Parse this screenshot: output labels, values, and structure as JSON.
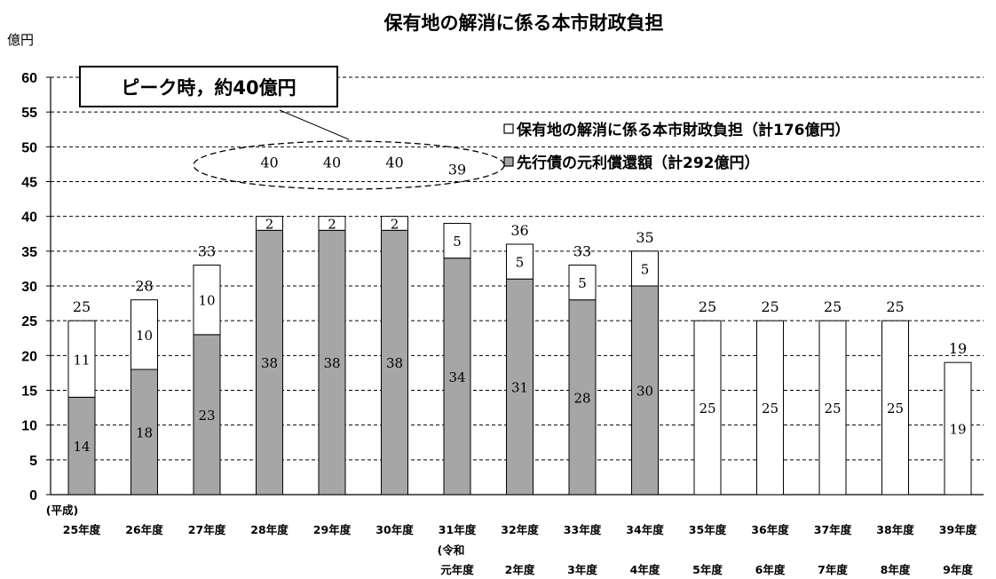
{
  "chart_data": {
    "type": "bar",
    "stacked": true,
    "title": "保有地の解消に係る本市財政負担",
    "ylabel": "億円",
    "ylim": [
      0,
      60
    ],
    "yticks": [
      0,
      5,
      10,
      15,
      20,
      25,
      30,
      35,
      40,
      45,
      50,
      55,
      60
    ],
    "grid": true,
    "era_labels": {
      "heisei": "(平成)",
      "reiwa": "(令和"
    },
    "categories": [
      "25年度",
      "26年度",
      "27年度",
      "28年度",
      "29年度",
      "30年度",
      "31年度",
      "32年度",
      "33年度",
      "34年度",
      "35年度",
      "36年度",
      "37年度",
      "38年度",
      "39年度"
    ],
    "categories_reiwa": [
      "元年度",
      "2年度",
      "3年度",
      "4年度",
      "5年度",
      "6年度",
      "7年度",
      "8年度",
      "9年度"
    ],
    "series": [
      {
        "name": "先行債の元利償還額（計292億円）",
        "color": "#a6a6a6",
        "values": [
          14,
          18,
          23,
          38,
          38,
          38,
          34,
          31,
          28,
          30,
          0,
          0,
          0,
          0,
          0
        ]
      },
      {
        "name": "保有地の解消に係る本市財政負担（計176億円）",
        "color": "#ffffff",
        "values": [
          11,
          10,
          10,
          2,
          2,
          2,
          5,
          5,
          5,
          5,
          25,
          25,
          25,
          25,
          19
        ]
      }
    ],
    "totals": [
      25,
      28,
      33,
      40,
      40,
      40,
      39,
      36,
      33,
      35,
      25,
      25,
      25,
      25,
      19
    ],
    "legend_position": "top-right",
    "annotation": "ピーク時，約40億円"
  }
}
